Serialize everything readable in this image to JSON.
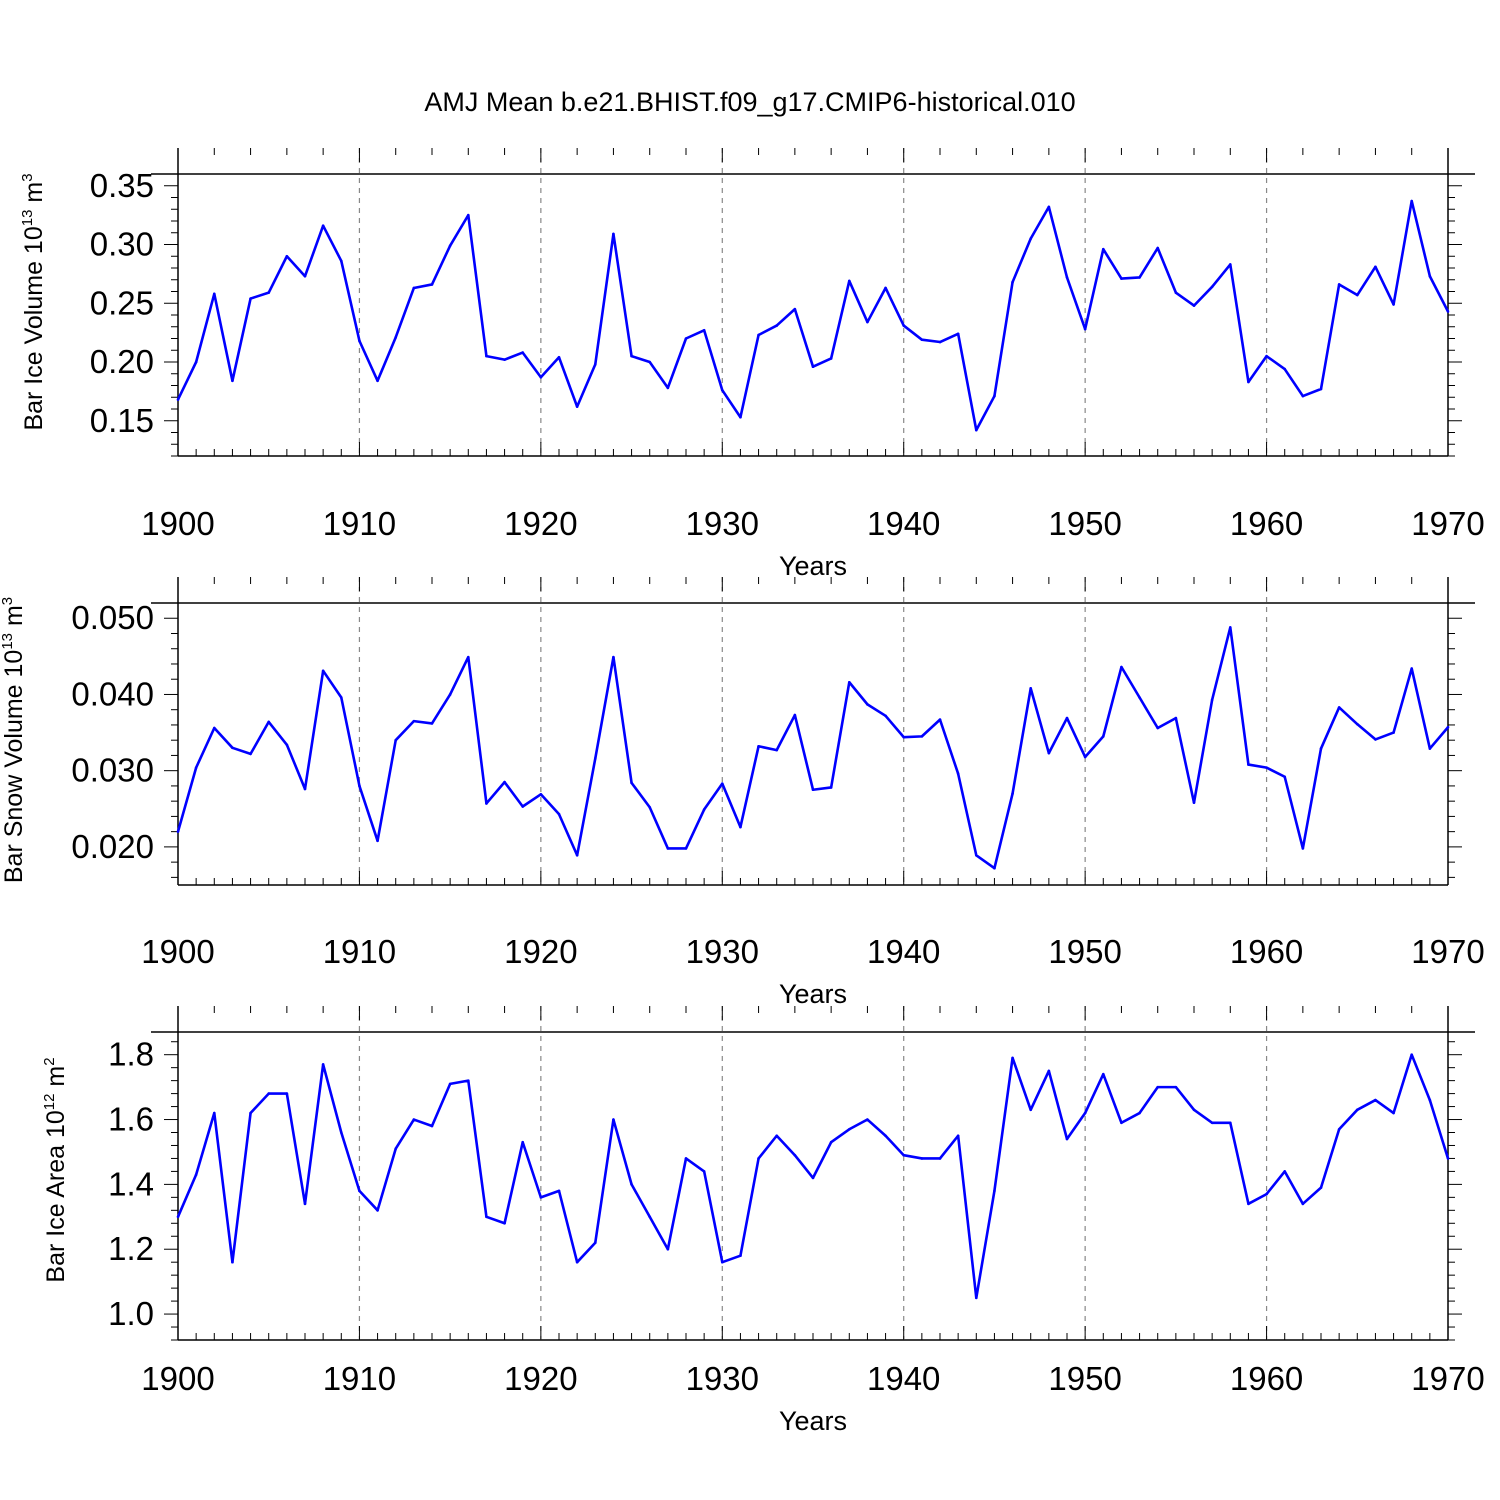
{
  "figure_title": "AMJ Mean b.e21.BHIST.f09_g17.CMIP6-historical.010",
  "line_color": "#0000ff",
  "chart_data": [
    {
      "type": "line",
      "ylabel": {
        "text": "Bar Ice Volume 10",
        "exp": "13",
        "unit": " m",
        "unit_exp": "3"
      },
      "xlabel": "Years",
      "xlim": [
        1900,
        1970
      ],
      "ylim": [
        0.12,
        0.36
      ],
      "xticks": [
        "1900",
        "1910",
        "1920",
        "1930",
        "1940",
        "1950",
        "1960",
        "1970"
      ],
      "yticks": [
        "0.15",
        "0.20",
        "0.25",
        "0.30",
        "0.35"
      ],
      "series": [
        {
          "name": "Bar Ice Volume",
          "color": "#0000ff",
          "x_start": 1900,
          "values": [
            0.168,
            0.2,
            0.258,
            0.184,
            0.254,
            0.259,
            0.29,
            0.273,
            0.316,
            0.286,
            0.218,
            0.184,
            0.221,
            0.263,
            0.266,
            0.299,
            0.325,
            0.205,
            0.202,
            0.208,
            0.187,
            0.204,
            0.162,
            0.198,
            0.309,
            0.205,
            0.2,
            0.178,
            0.22,
            0.227,
            0.176,
            0.153,
            0.223,
            0.231,
            0.245,
            0.196,
            0.203,
            0.269,
            0.234,
            0.263,
            0.231,
            0.219,
            0.217,
            0.224,
            0.142,
            0.171,
            0.268,
            0.305,
            0.332,
            0.272,
            0.228,
            0.296,
            0.271,
            0.272,
            0.297,
            0.259,
            0.248,
            0.264,
            0.283,
            0.183,
            0.205,
            0.194,
            0.171,
            0.177,
            0.266,
            0.257,
            0.281,
            0.249,
            0.337,
            0.273,
            0.243
          ]
        }
      ]
    },
    {
      "type": "line",
      "ylabel": {
        "text": "Bar Snow Volume 10",
        "exp": "13",
        "unit": " m",
        "unit_exp": "3"
      },
      "xlabel": "Years",
      "xlim": [
        1900,
        1970
      ],
      "ylim": [
        0.015,
        0.052
      ],
      "xticks": [
        "1900",
        "1910",
        "1920",
        "1930",
        "1940",
        "1950",
        "1960",
        "1970"
      ],
      "yticks": [
        "0.020",
        "0.030",
        "0.040",
        "0.050"
      ],
      "series": [
        {
          "name": "Bar Snow Volume",
          "color": "#0000ff",
          "x_start": 1900,
          "values": [
            0.022,
            0.0304,
            0.0356,
            0.033,
            0.0322,
            0.0364,
            0.0334,
            0.0276,
            0.0431,
            0.0396,
            0.028,
            0.0208,
            0.034,
            0.0365,
            0.0362,
            0.04,
            0.0449,
            0.0257,
            0.0285,
            0.0253,
            0.0269,
            0.0243,
            0.0189,
            0.0316,
            0.0449,
            0.0284,
            0.0252,
            0.0198,
            0.0198,
            0.0249,
            0.0283,
            0.0226,
            0.0332,
            0.0327,
            0.0373,
            0.0275,
            0.0278,
            0.0416,
            0.0387,
            0.0372,
            0.0344,
            0.0345,
            0.0367,
            0.0296,
            0.0189,
            0.0172,
            0.027,
            0.0408,
            0.0323,
            0.0369,
            0.0318,
            0.0345,
            0.0436,
            0.0396,
            0.0356,
            0.0369,
            0.0258,
            0.0393,
            0.0488,
            0.0308,
            0.0304,
            0.0292,
            0.0198,
            0.0329,
            0.0383,
            0.0361,
            0.0341,
            0.035,
            0.0434,
            0.0329,
            0.0357
          ]
        }
      ]
    },
    {
      "type": "line",
      "ylabel": {
        "text": "Bar Ice Area 10",
        "exp": "12",
        "unit": " m",
        "unit_exp": "2"
      },
      "xlabel": "Years",
      "xlim": [
        1900,
        1970
      ],
      "ylim": [
        0.92,
        1.87
      ],
      "xticks": [
        "1900",
        "1910",
        "1920",
        "1930",
        "1940",
        "1950",
        "1960",
        "1970"
      ],
      "yticks": [
        "1.0",
        "1.2",
        "1.4",
        "1.6",
        "1.8"
      ],
      "series": [
        {
          "name": "Bar Ice Area",
          "color": "#0000ff",
          "x_start": 1900,
          "values": [
            1.3,
            1.43,
            1.62,
            1.16,
            1.62,
            1.68,
            1.68,
            1.34,
            1.77,
            1.56,
            1.38,
            1.32,
            1.51,
            1.6,
            1.58,
            1.71,
            1.72,
            1.3,
            1.28,
            1.53,
            1.36,
            1.38,
            1.16,
            1.22,
            1.6,
            1.4,
            1.3,
            1.2,
            1.48,
            1.44,
            1.16,
            1.18,
            1.48,
            1.55,
            1.49,
            1.42,
            1.53,
            1.57,
            1.6,
            1.55,
            1.49,
            1.48,
            1.48,
            1.55,
            1.05,
            1.38,
            1.79,
            1.63,
            1.75,
            1.54,
            1.62,
            1.74,
            1.59,
            1.62,
            1.7,
            1.7,
            1.63,
            1.59,
            1.59,
            1.34,
            1.37,
            1.44,
            1.34,
            1.39,
            1.57,
            1.63,
            1.66,
            1.62,
            1.8,
            1.66,
            1.48
          ]
        }
      ]
    }
  ]
}
